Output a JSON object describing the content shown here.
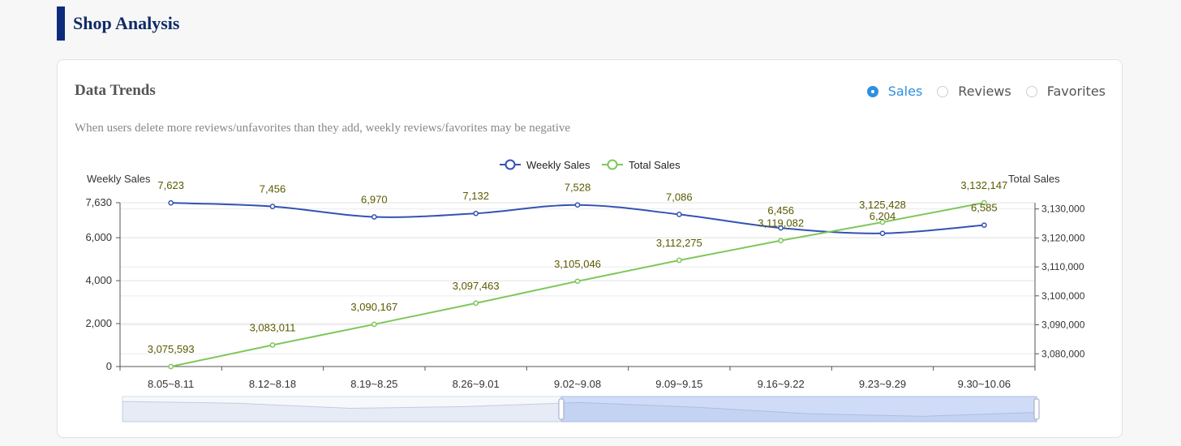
{
  "page": {
    "title": "Shop Analysis"
  },
  "card": {
    "title": "Data Trends",
    "note": "When users delete more reviews/unfavorites than they add, weekly reviews/favorites may be negative",
    "tabs": [
      {
        "label": "Sales",
        "selected": true
      },
      {
        "label": "Reviews",
        "selected": false
      },
      {
        "label": "Favorites",
        "selected": false
      }
    ]
  },
  "colors": {
    "weekly": "#3452b4",
    "total": "#7ec75b",
    "accent": "#2f8fe0",
    "header_bar": "#0d2b7a",
    "label": "#5a5a00"
  },
  "chart_data": {
    "type": "line",
    "categories": [
      "8.05~8.11",
      "8.12~8.18",
      "8.19~8.25",
      "8.26~9.01",
      "9.02~9.08",
      "9.09~9.15",
      "9.16~9.22",
      "9.23~9.29",
      "9.30~10.06"
    ],
    "series": [
      {
        "name": "Weekly Sales",
        "axis": "left",
        "values": [
          7623,
          7456,
          6970,
          7132,
          7528,
          7086,
          6456,
          6204,
          6585
        ],
        "labels": [
          "7,623",
          "7,456",
          "6,970",
          "7,132",
          "7,528",
          "7,086",
          "6,456",
          "6,204",
          "6,585"
        ]
      },
      {
        "name": "Total Sales",
        "axis": "right",
        "values": [
          3075593,
          3083011,
          3090167,
          3097463,
          3105046,
          3112275,
          3119082,
          3125428,
          3132147
        ],
        "labels": [
          "3,075,593",
          "3,083,011",
          "3,090,167",
          "3,097,463",
          "3,105,046",
          "3,112,275",
          "3,119,082",
          "3,125,428",
          "3,132,147"
        ]
      }
    ],
    "left_axis": {
      "label": "Weekly Sales",
      "range": [
        0,
        7630
      ],
      "ticks": [
        0,
        2000,
        4000,
        6000,
        7630
      ],
      "tick_labels": [
        "0",
        "2,000",
        "4,000",
        "6,000",
        "7,630"
      ]
    },
    "right_axis": {
      "label": "Total Sales",
      "range": [
        3075593,
        3132147
      ],
      "ticks": [
        3080000,
        3090000,
        3100000,
        3110000,
        3120000,
        3130000
      ],
      "tick_labels": [
        "3,080,000",
        "3,090,000",
        "3,100,000",
        "3,110,000",
        "3,120,000",
        "3,130,000"
      ]
    },
    "legend": {
      "position": "top-center",
      "entries": [
        "Weekly Sales",
        "Total Sales"
      ]
    },
    "grid": true,
    "data_zoom": {
      "start": 0.48,
      "end": 1.0
    }
  }
}
